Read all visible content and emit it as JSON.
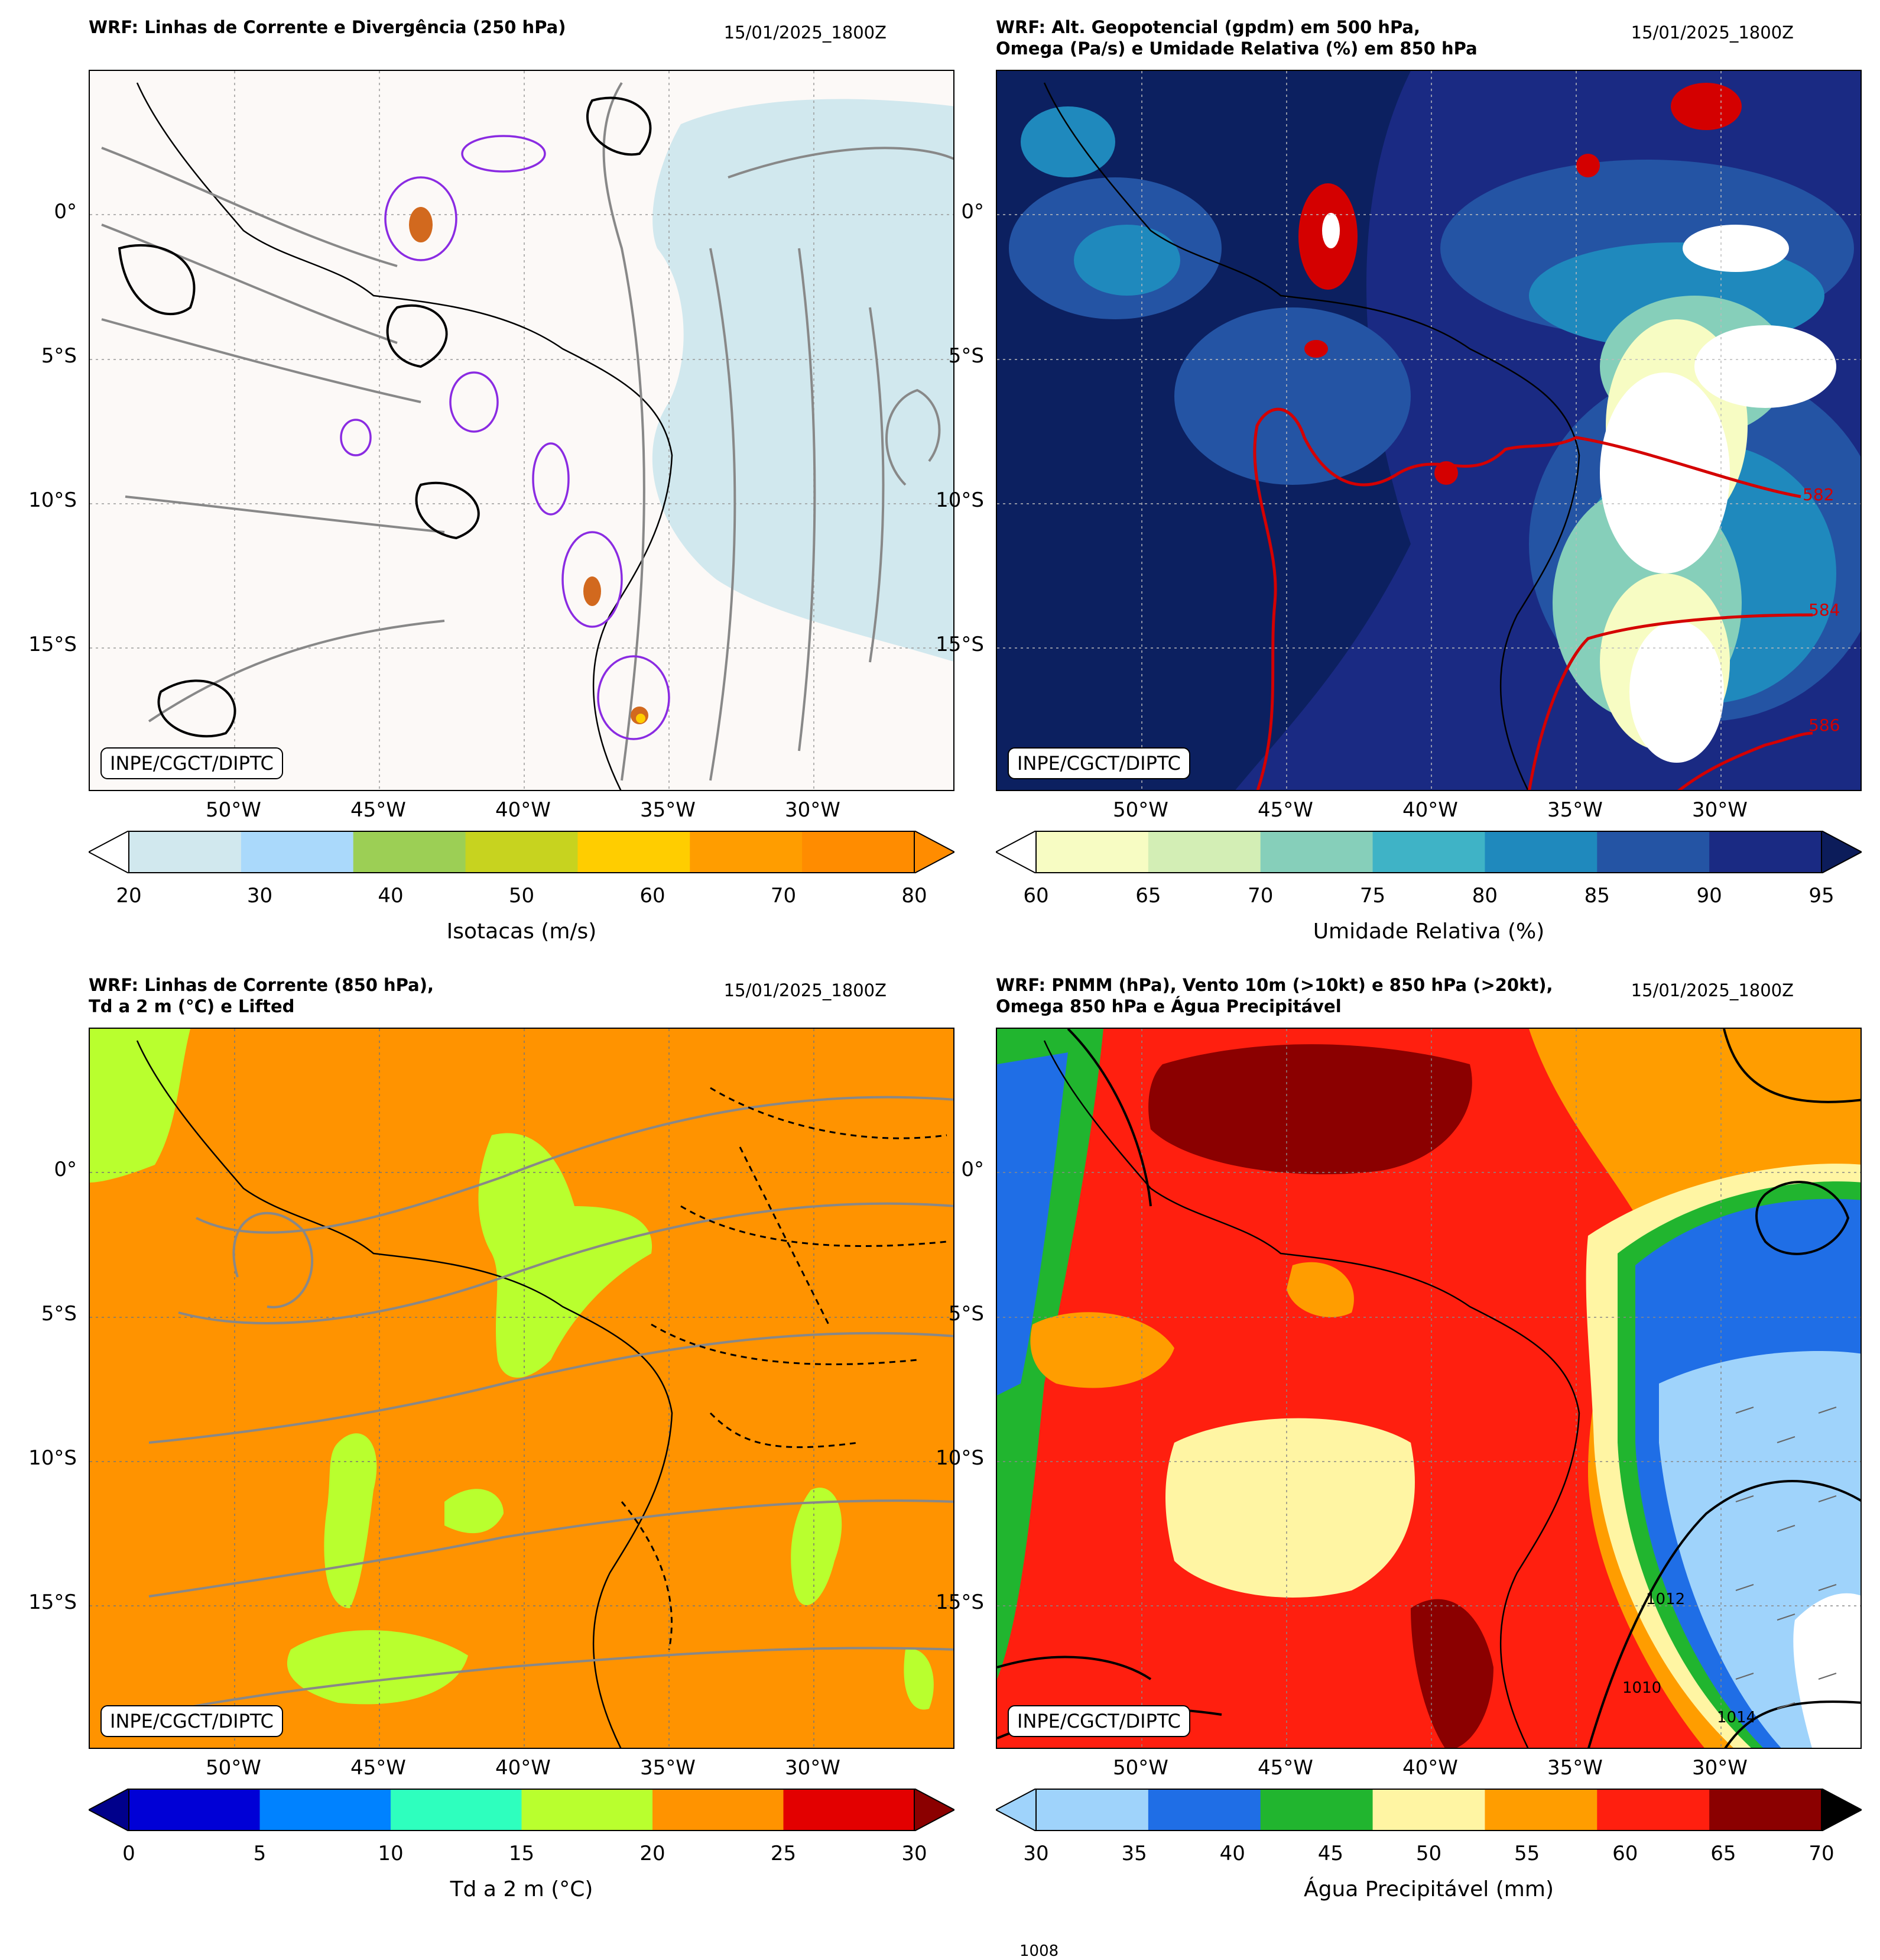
{
  "panels": [
    {
      "title": "WRF: Linhas de Corrente e Divergência (250 hPa)",
      "date": "15/01/2025_1800Z",
      "credit": "INPE/CGCT/DIPTC",
      "y_labels": [
        "0°",
        "5°S",
        "10°S",
        "15°S"
      ],
      "x_labels": [
        "50°W",
        "45°W",
        "40°W",
        "35°W",
        "30°W"
      ],
      "colorbar": {
        "label": "Isotacas (m/s)",
        "ticks": [
          "20",
          "30",
          "40",
          "50",
          "60",
          "70",
          "80"
        ],
        "colors": [
          "#d1e8ee",
          "#aad9fb",
          "#9ccf55",
          "#c7d31f",
          "#ffcd00",
          "#ff9d00",
          "#ff8c00"
        ],
        "extend_low": "#ffffff",
        "extend_high": "#ff8c00"
      }
    },
    {
      "title": "WRF: Alt. Geopotencial (gpdm) em 500 hPa,\nOmega (Pa/s) e Umidade Relativa (%) em 850 hPa",
      "date": "15/01/2025_1800Z",
      "credit": "INPE/CGCT/DIPTC",
      "y_labels": [
        "0°",
        "5°S",
        "10°S",
        "15°S"
      ],
      "x_labels": [
        "50°W",
        "45°W",
        "40°W",
        "35°W",
        "30°W"
      ],
      "contour_labels": [
        "582",
        "584",
        "586"
      ],
      "colorbar": {
        "label": "Umidade Relativa (%)",
        "ticks": [
          "60",
          "65",
          "70",
          "75",
          "80",
          "85",
          "90",
          "95"
        ],
        "colors": [
          "#f7fcc3",
          "#d3eeb5",
          "#86cfba",
          "#3fb3c6",
          "#1f89bd",
          "#2454a4",
          "#1a2a83"
        ],
        "extend_low": "#ffffff",
        "extend_high": "#0c1c5a"
      }
    },
    {
      "title": "WRF: Linhas de Corrente (850 hPa),\nTd a 2 m (°C) e Lifted",
      "date": "15/01/2025_1800Z",
      "credit": "INPE/CGCT/DIPTC",
      "y_labels": [
        "0°",
        "5°S",
        "10°S",
        "15°S"
      ],
      "x_labels": [
        "50°W",
        "45°W",
        "40°W",
        "35°W",
        "30°W"
      ],
      "colorbar": {
        "label": "Td a 2 m (°C)",
        "ticks": [
          "0",
          "5",
          "10",
          "15",
          "20",
          "25",
          "30"
        ],
        "colors": [
          "#0000d6",
          "#0082ff",
          "#2effbe",
          "#b9ff2e",
          "#ff9300",
          "#e30000"
        ],
        "extend_low": "#00008b",
        "extend_high": "#8b0000"
      }
    },
    {
      "title": "WRF: PNMM (hPa), Vento 10m (>10kt) e 850 hPa (>20kt),\nOmega 850 hPa e Água Precipitável",
      "date": "15/01/2025_1800Z",
      "credit": "INPE/CGCT/DIPTC",
      "y_labels": [
        "0°",
        "5°S",
        "10°S",
        "15°S"
      ],
      "x_labels": [
        "50°W",
        "45°W",
        "40°W",
        "35°W",
        "30°W"
      ],
      "contour_labels": [
        "1008",
        "1010",
        "1012",
        "1014"
      ],
      "colorbar": {
        "label": "Água Precipitável (mm)",
        "ticks": [
          "30",
          "35",
          "40",
          "45",
          "50",
          "55",
          "60",
          "65",
          "70"
        ],
        "colors": [
          "#9fd3fb",
          "#1f6ee6",
          "#21b52f",
          "#fff5a3",
          "#ff9d00",
          "#ff1f0f",
          "#8b0000"
        ],
        "extend_low": "#9fd3fb",
        "extend_high": "#000000"
      }
    }
  ]
}
